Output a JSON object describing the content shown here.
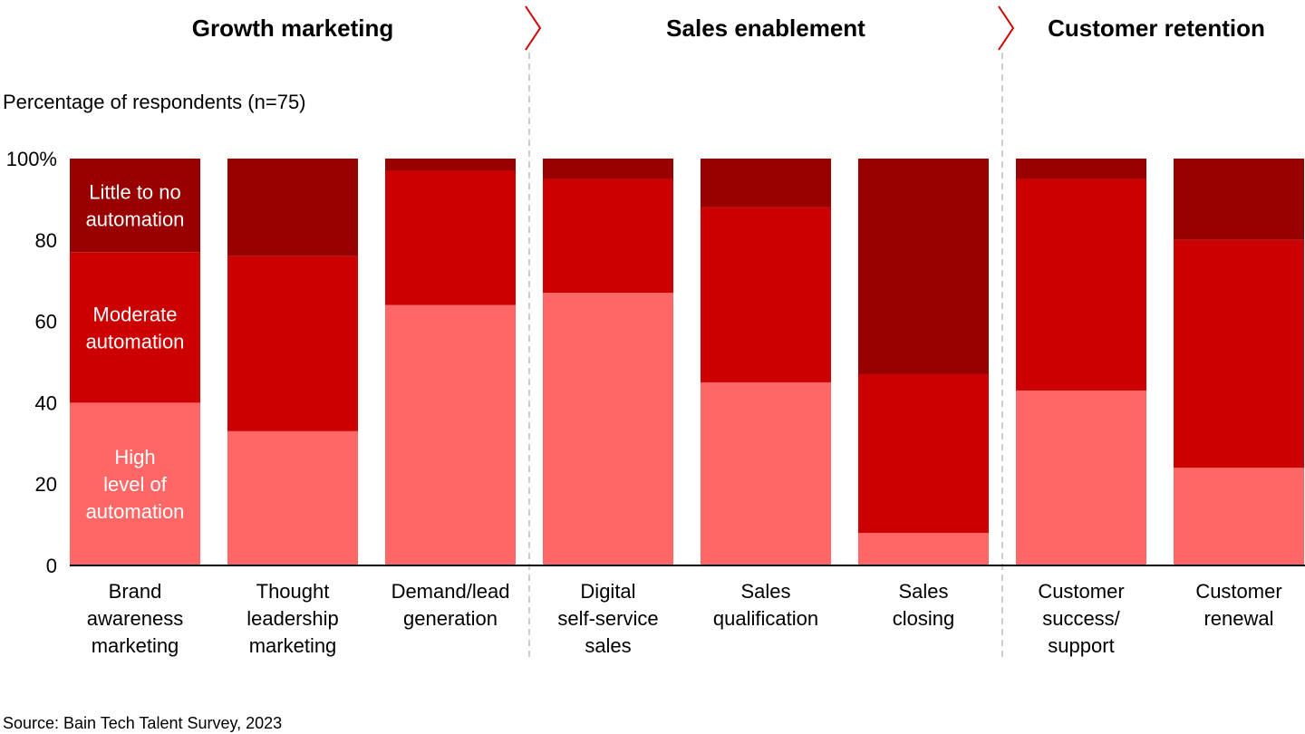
{
  "chart_data": {
    "type": "bar",
    "stacked": true,
    "percent_stacked": true,
    "groups": [
      {
        "title": "Growth marketing",
        "categories": [
          0,
          1,
          2
        ]
      },
      {
        "title": "Sales enablement",
        "categories": [
          3,
          4,
          5
        ]
      },
      {
        "title": "Customer retention",
        "categories": [
          6,
          7
        ]
      }
    ],
    "ylabel": "Percentage of respondents (n=75)",
    "ylim": [
      0,
      100
    ],
    "yticks": [
      {
        "value": 0,
        "label": "0"
      },
      {
        "value": 20,
        "label": "20"
      },
      {
        "value": 40,
        "label": "40"
      },
      {
        "value": 60,
        "label": "60"
      },
      {
        "value": 80,
        "label": "80"
      },
      {
        "value": 100,
        "label": "100%"
      }
    ],
    "categories": [
      [
        "Brand",
        "awareness",
        "marketing"
      ],
      [
        "Thought",
        "leadership",
        "marketing"
      ],
      [
        "Demand/lead",
        "generation"
      ],
      [
        "Digital",
        "self-service",
        "sales"
      ],
      [
        "Sales",
        "qualification"
      ],
      [
        "Sales",
        "closing"
      ],
      [
        "Customer",
        "success/",
        "support"
      ],
      [
        "Customer",
        "renewal"
      ]
    ],
    "series": [
      {
        "name": "High level of automation",
        "label_lines": [
          "High",
          "level of",
          "automation"
        ],
        "color": "#FF6666",
        "values": [
          40,
          33,
          64,
          67,
          45,
          8,
          43,
          24
        ]
      },
      {
        "name": "Moderate automation",
        "label_lines": [
          "Moderate",
          "automation"
        ],
        "color": "#CC0000",
        "values": [
          37,
          43,
          33,
          28,
          43,
          39,
          52,
          56
        ]
      },
      {
        "name": "Little to no automation",
        "label_lines": [
          "Little to no",
          "automation"
        ],
        "color": "#990000",
        "values": [
          23,
          24,
          3,
          5,
          12,
          53,
          5,
          20
        ]
      }
    ],
    "legend": "inside-first-bar",
    "grid": false
  },
  "source": "Source: Bain Tech Talent Survey, 2023",
  "colors": {
    "chevron": "#CC0000",
    "axis": "#000000",
    "separator": "#999999"
  }
}
